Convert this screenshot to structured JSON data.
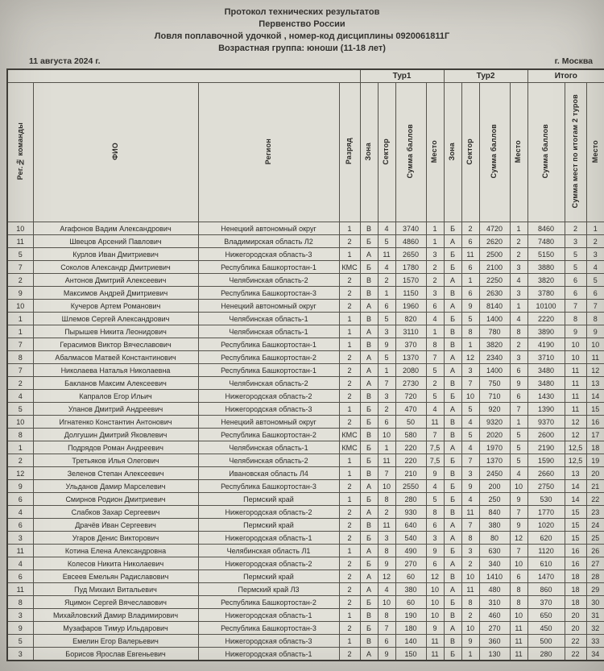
{
  "document": {
    "title_lines": [
      "Протокол технических результатов",
      "Первенство России",
      "Ловля поплавочной удочкой , номер-код дисциплины 0920061811Г",
      "Возрастная группа: юноши (11-18 лет)"
    ],
    "date": "11 августа 2024 г.",
    "city": "г. Москва"
  },
  "table": {
    "groups": [
      {
        "label": "",
        "span": 4
      },
      {
        "label": "Тур1",
        "span": 4
      },
      {
        "label": "Тур2",
        "span": 4
      },
      {
        "label": "Итого",
        "span": 3
      }
    ],
    "columns": [
      "Рег.№ команды",
      "ФИО",
      "Регион",
      "Разряд",
      "Зона",
      "Сектор",
      "Сумма баллов",
      "Место",
      "Зона",
      "Сектор",
      "Сумма баллов",
      "Место",
      "Сумма баллов",
      "Сумма мест по итогам 2 туров",
      "Место"
    ],
    "rows": [
      [
        "10",
        "Агафонов Вадим Александрович",
        "Ненецкий автономный округ",
        "1",
        "В",
        "4",
        "3740",
        "1",
        "Б",
        "2",
        "4720",
        "1",
        "8460",
        "2",
        "1"
      ],
      [
        "11",
        "Швецов Арсений Павлович",
        "Владимирская область Л2",
        "2",
        "Б",
        "5",
        "4860",
        "1",
        "А",
        "6",
        "2620",
        "2",
        "7480",
        "3",
        "2"
      ],
      [
        "5",
        "Курлов Иван Дмитриевич",
        "Нижегородская область-3",
        "1",
        "А",
        "11",
        "2650",
        "3",
        "Б",
        "11",
        "2500",
        "2",
        "5150",
        "5",
        "3"
      ],
      [
        "7",
        "Соколов Александр Дмитриевич",
        "Республика Башкортостан-1",
        "КМС",
        "Б",
        "4",
        "1780",
        "2",
        "Б",
        "6",
        "2100",
        "3",
        "3880",
        "5",
        "4"
      ],
      [
        "2",
        "Антонов Дмитрий Алексеевич",
        "Челябинская область-2",
        "2",
        "В",
        "2",
        "1570",
        "2",
        "А",
        "1",
        "2250",
        "4",
        "3820",
        "6",
        "5"
      ],
      [
        "9",
        "Максимов Андрей Дмитриевич",
        "Республика Башкортостан-3",
        "2",
        "В",
        "1",
        "1150",
        "3",
        "В",
        "6",
        "2630",
        "3",
        "3780",
        "6",
        "6"
      ],
      [
        "10",
        "Кучеров Артем Романович",
        "Ненецкий автономный округ",
        "2",
        "А",
        "6",
        "1960",
        "6",
        "А",
        "9",
        "8140",
        "1",
        "10100",
        "7",
        "7"
      ],
      [
        "1",
        "Шлемов Сергей Александрович",
        "Челябинская область-1",
        "1",
        "В",
        "5",
        "820",
        "4",
        "Б",
        "5",
        "1400",
        "4",
        "2220",
        "8",
        "8"
      ],
      [
        "1",
        "Пырышев Никита Леонидович",
        "Челябинская область-1",
        "1",
        "А",
        "3",
        "3110",
        "1",
        "В",
        "8",
        "780",
        "8",
        "3890",
        "9",
        "9"
      ],
      [
        "7",
        "Герасимов Виктор Вячеславович",
        "Республика Башкортостан-1",
        "1",
        "В",
        "9",
        "370",
        "8",
        "В",
        "1",
        "3820",
        "2",
        "4190",
        "10",
        "10"
      ],
      [
        "8",
        "Абалмасов Матвей Константинович",
        "Республика Башкортостан-2",
        "2",
        "А",
        "5",
        "1370",
        "7",
        "А",
        "12",
        "2340",
        "3",
        "3710",
        "10",
        "11"
      ],
      [
        "7",
        "Николаева Наталья Николаевна",
        "Республика Башкортостан-1",
        "2",
        "А",
        "1",
        "2080",
        "5",
        "А",
        "3",
        "1400",
        "6",
        "3480",
        "11",
        "12"
      ],
      [
        "2",
        "Бакланов Максим Алексеевич",
        "Челябинская область-2",
        "2",
        "А",
        "7",
        "2730",
        "2",
        "В",
        "7",
        "750",
        "9",
        "3480",
        "11",
        "13"
      ],
      [
        "4",
        "Капралов Егор Ильич",
        "Нижегородская область-2",
        "2",
        "В",
        "3",
        "720",
        "5",
        "Б",
        "10",
        "710",
        "6",
        "1430",
        "11",
        "14"
      ],
      [
        "5",
        "Уланов Дмитрий Андреевич",
        "Нижегородская область-3",
        "1",
        "Б",
        "2",
        "470",
        "4",
        "А",
        "5",
        "920",
        "7",
        "1390",
        "11",
        "15"
      ],
      [
        "10",
        "Игнатенко Константин Антонович",
        "Ненецкий автономный округ",
        "2",
        "Б",
        "6",
        "50",
        "11",
        "В",
        "4",
        "9320",
        "1",
        "9370",
        "12",
        "16"
      ],
      [
        "8",
        "Долгушин Дмитрий Яковлевич",
        "Республика Башкортостан-2",
        "КМС",
        "В",
        "10",
        "580",
        "7",
        "В",
        "5",
        "2020",
        "5",
        "2600",
        "12",
        "17"
      ],
      [
        "1",
        "Подрядов Роман Андреевич",
        "Челябинская область-1",
        "КМС",
        "Б",
        "1",
        "220",
        "7,5",
        "А",
        "4",
        "1970",
        "5",
        "2190",
        "12,5",
        "18"
      ],
      [
        "2",
        "Третьяков Илья Олегович",
        "Челябинская область-2",
        "1",
        "Б",
        "11",
        "220",
        "7,5",
        "Б",
        "7",
        "1370",
        "5",
        "1590",
        "12,5",
        "19"
      ],
      [
        "12",
        "Зеленов Степан Алексеевич",
        "Ивановская область Л4",
        "1",
        "В",
        "7",
        "210",
        "9",
        "В",
        "3",
        "2450",
        "4",
        "2660",
        "13",
        "20"
      ],
      [
        "9",
        "Ульданов Дамир Марселевич",
        "Республика Башкортостан-3",
        "2",
        "А",
        "10",
        "2550",
        "4",
        "Б",
        "9",
        "200",
        "10",
        "2750",
        "14",
        "21"
      ],
      [
        "6",
        "Смирнов Родион Дмитриевич",
        "Пермский край",
        "1",
        "Б",
        "8",
        "280",
        "5",
        "Б",
        "4",
        "250",
        "9",
        "530",
        "14",
        "22"
      ],
      [
        "4",
        "Слабков Захар Сергеевич",
        "Нижегородская область-2",
        "2",
        "А",
        "2",
        "930",
        "8",
        "В",
        "11",
        "840",
        "7",
        "1770",
        "15",
        "23"
      ],
      [
        "6",
        "Драчёв Иван Сергеевич",
        "Пермский край",
        "2",
        "В",
        "11",
        "640",
        "6",
        "А",
        "7",
        "380",
        "9",
        "1020",
        "15",
        "24"
      ],
      [
        "3",
        "Угаров Денис Викторович",
        "Нижегородская область-1",
        "2",
        "Б",
        "3",
        "540",
        "3",
        "А",
        "8",
        "80",
        "12",
        "620",
        "15",
        "25"
      ],
      [
        "11",
        "Котина Елена Александровна",
        "Челябинская область Л1",
        "1",
        "А",
        "8",
        "490",
        "9",
        "Б",
        "3",
        "630",
        "7",
        "1120",
        "16",
        "26"
      ],
      [
        "4",
        "Колесов Никита Николаевич",
        "Нижегородская область-2",
        "2",
        "Б",
        "9",
        "270",
        "6",
        "А",
        "2",
        "340",
        "10",
        "610",
        "16",
        "27"
      ],
      [
        "6",
        "Евсеев Емельян Радиславович",
        "Пермский край",
        "2",
        "А",
        "12",
        "60",
        "12",
        "В",
        "10",
        "1410",
        "6",
        "1470",
        "18",
        "28"
      ],
      [
        "11",
        "Пуд Михаил Витальевич",
        "Пермский край Л3",
        "2",
        "А",
        "4",
        "380",
        "10",
        "А",
        "11",
        "480",
        "8",
        "860",
        "18",
        "29"
      ],
      [
        "8",
        "Яцимон Сергей Вячеславович",
        "Республика Башкортостан-2",
        "2",
        "Б",
        "10",
        "60",
        "10",
        "Б",
        "8",
        "310",
        "8",
        "370",
        "18",
        "30"
      ],
      [
        "3",
        "Михайловский Дамир Владимирович",
        "Нижегородская область-1",
        "1",
        "В",
        "8",
        "190",
        "10",
        "В",
        "2",
        "460",
        "10",
        "650",
        "20",
        "31"
      ],
      [
        "9",
        "Музафаров Тимур Ильдарович",
        "Республика Башкортостан-3",
        "2",
        "Б",
        "7",
        "180",
        "9",
        "А",
        "10",
        "270",
        "11",
        "450",
        "20",
        "32"
      ],
      [
        "5",
        "Емелин Егор Валерьевич",
        "Нижегородская область-3",
        "1",
        "В",
        "6",
        "140",
        "11",
        "В",
        "9",
        "360",
        "11",
        "500",
        "22",
        "33"
      ],
      [
        "3",
        "Борисов Ярослав Евгеньевич",
        "Нижегородская область-1",
        "2",
        "А",
        "9",
        "150",
        "11",
        "Б",
        "1",
        "130",
        "11",
        "280",
        "22",
        "34"
      ]
    ]
  }
}
